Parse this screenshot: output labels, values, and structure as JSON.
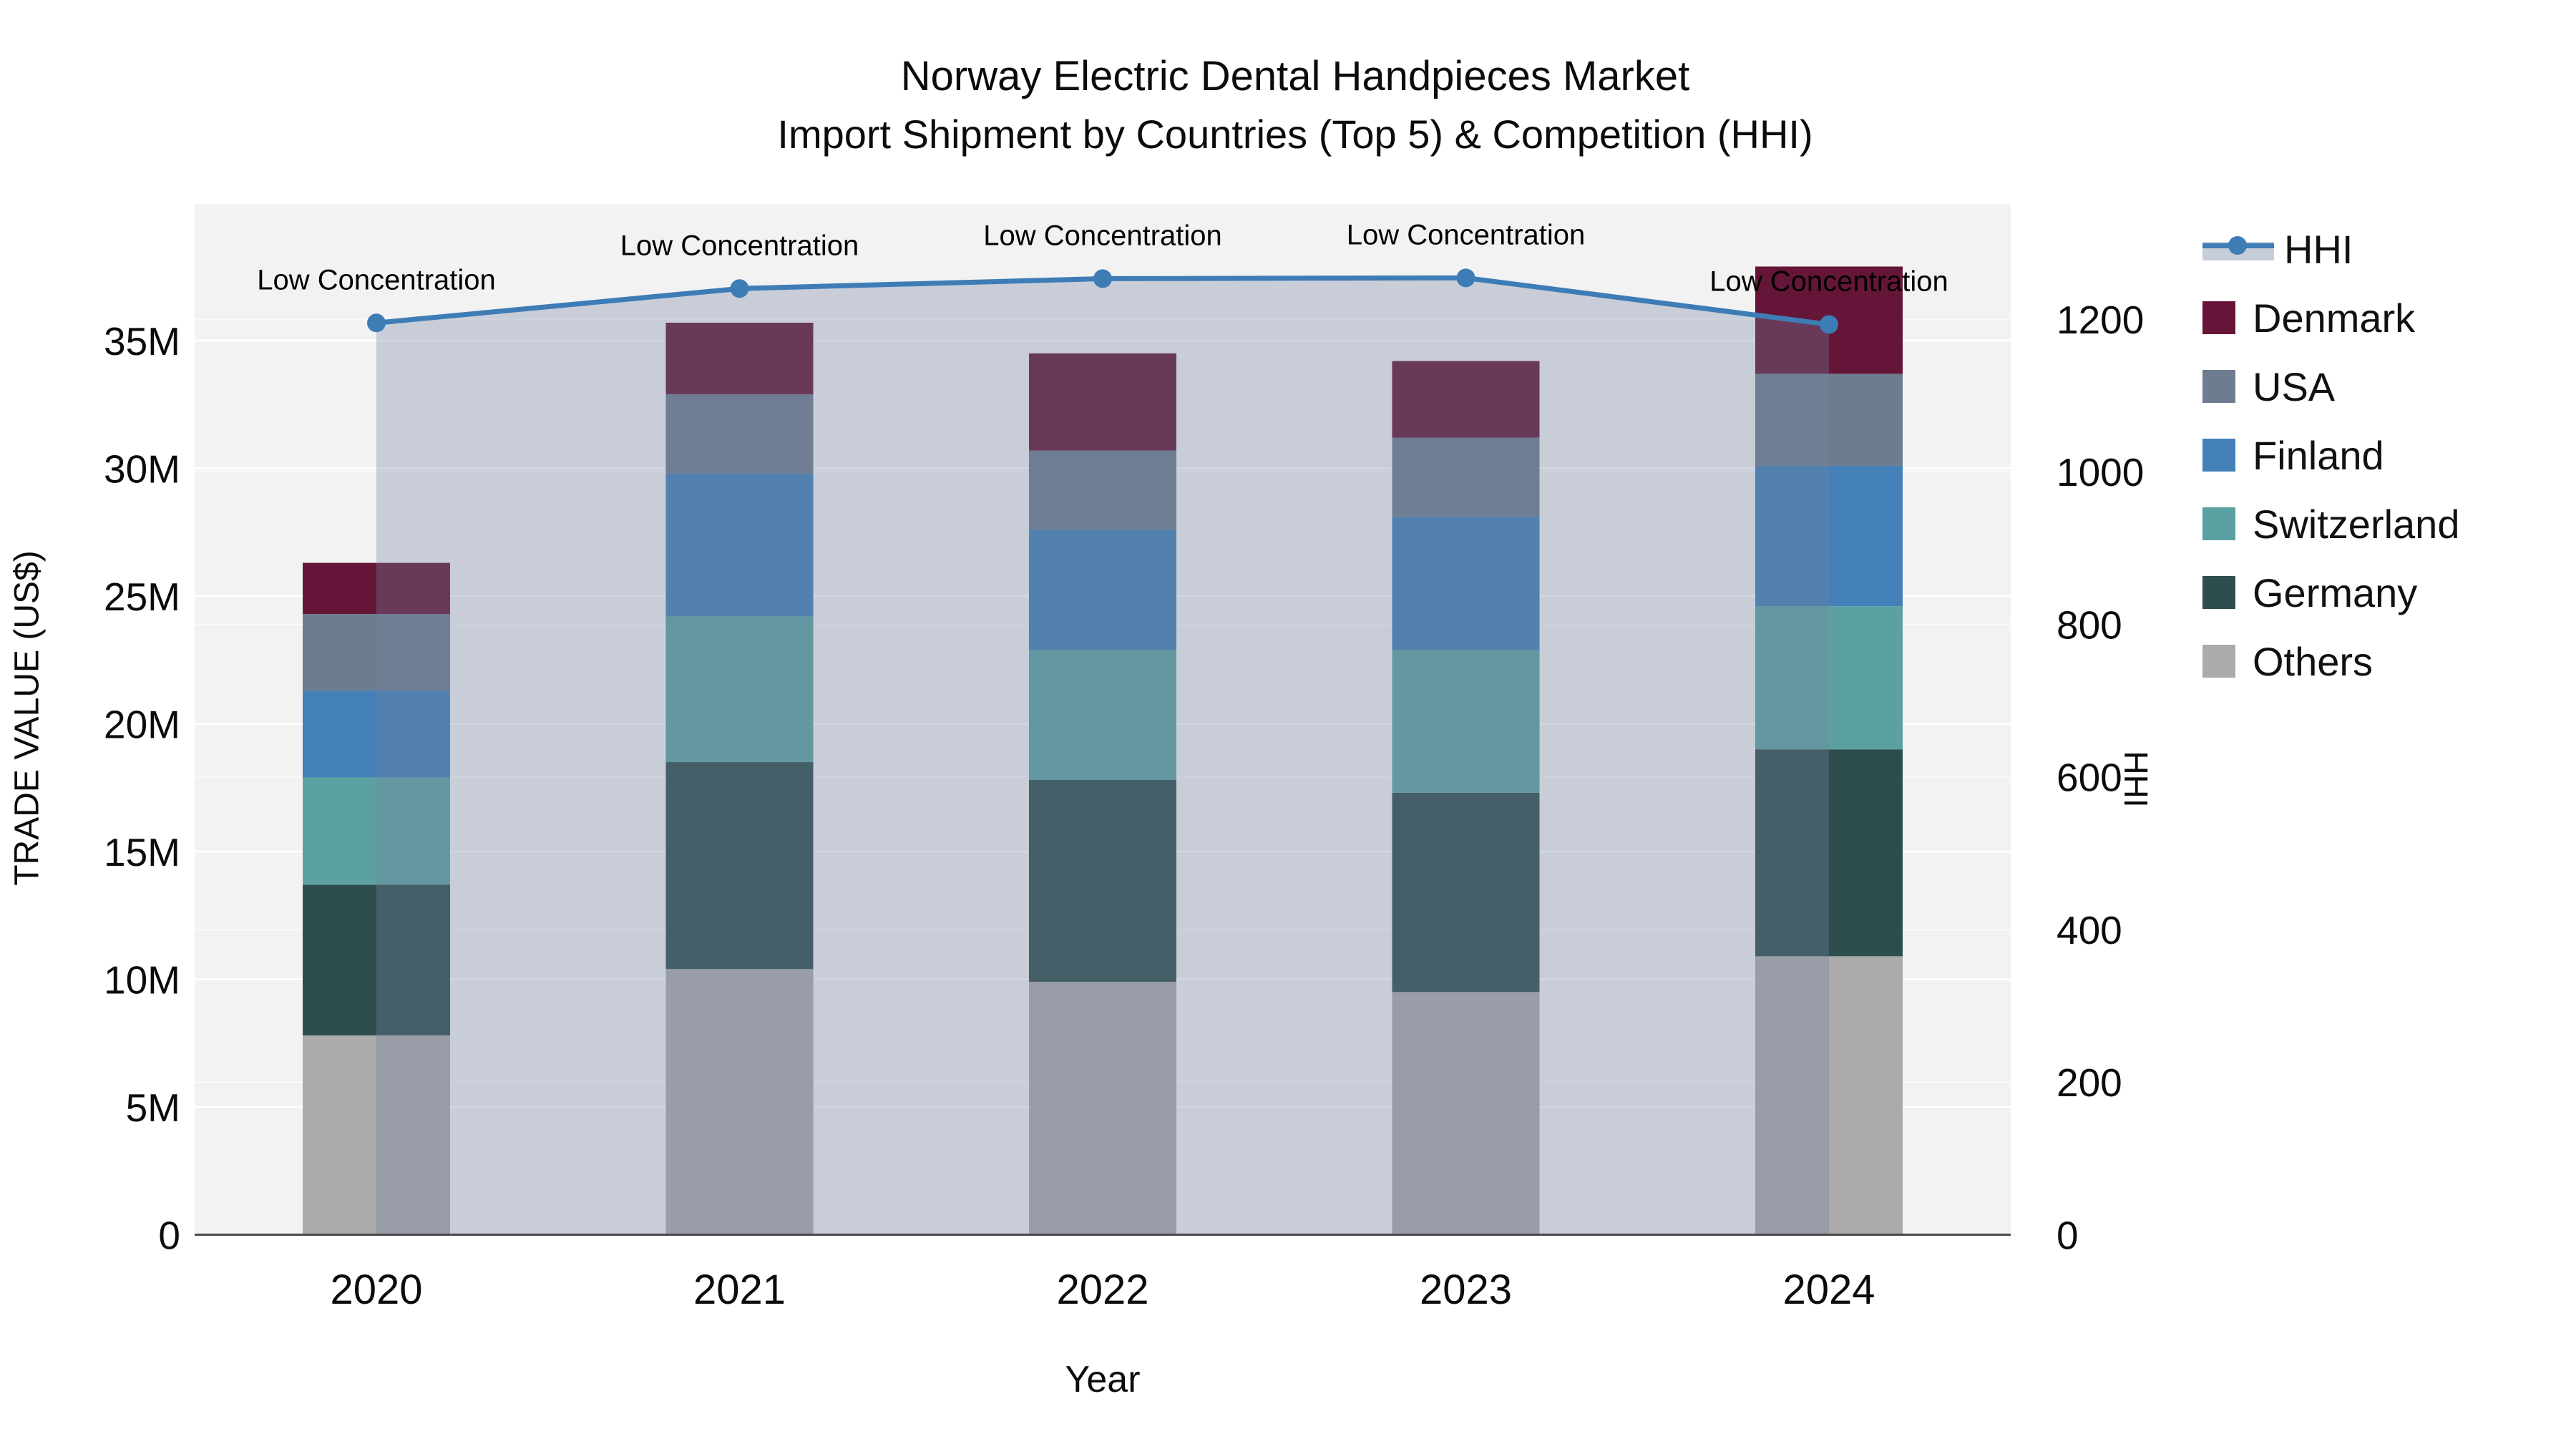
{
  "title": {
    "line1": "Norway Electric Dental Handpieces Market",
    "line2": "Import Shipment by Countries (Top 5) & Competition (HHI)"
  },
  "colors": {
    "plot_background": "#F2F2F3",
    "gridline": "#FFFFFF",
    "axis_line": "#4A4A4A",
    "hhi_line": "#3E7CB6",
    "hhi_fill": "rgba(114,130,161,0.33)",
    "Denmark": "#651638",
    "USA": "#6D7C8E",
    "Finland": "#4380B7",
    "Switzerland": "#5CA1A2",
    "Germany": "#2D4E4C",
    "Others": "#ABABAB"
  },
  "chart_data": {
    "type": "bar+line",
    "title": "Norway Electric Dental Handpieces Market Import Shipment by Countries (Top 5) & Competition (HHI)",
    "categories": [
      "2020",
      "2021",
      "2022",
      "2023",
      "2024"
    ],
    "bar_value_unit": "million US$",
    "stack_order_bottom_to_top": [
      "Others",
      "Germany",
      "Switzerland",
      "Finland",
      "USA",
      "Denmark"
    ],
    "series": [
      {
        "name": "Others",
        "values": [
          7.8,
          10.4,
          9.9,
          9.5,
          10.9
        ]
      },
      {
        "name": "Germany",
        "values": [
          5.9,
          8.1,
          7.9,
          7.8,
          8.1
        ]
      },
      {
        "name": "Switzerland",
        "values": [
          4.2,
          5.7,
          5.1,
          5.6,
          5.6
        ]
      },
      {
        "name": "Finland",
        "values": [
          3.4,
          5.6,
          4.7,
          5.2,
          5.5
        ]
      },
      {
        "name": "USA",
        "values": [
          3.0,
          3.1,
          3.1,
          3.1,
          3.6
        ]
      },
      {
        "name": "Denmark",
        "values": [
          2.0,
          2.8,
          3.8,
          3.0,
          4.2
        ]
      }
    ],
    "bar_totals": [
      26.3,
      35.7,
      34.5,
      34.2,
      37.9
    ],
    "line_series": {
      "name": "HHI",
      "values": [
        1195,
        1240,
        1253,
        1254,
        1193
      ]
    },
    "annotations": [
      {
        "year": "2020",
        "text": "Low Concentration"
      },
      {
        "year": "2021",
        "text": "Low Concentration"
      },
      {
        "year": "2022",
        "text": "Low Concentration"
      },
      {
        "year": "2023",
        "text": "Low Concentration"
      },
      {
        "year": "2024",
        "text": "Low Concentration"
      }
    ],
    "y_left": {
      "label": "TRADE VALUE (US$)",
      "tick_labels": [
        "0",
        "5M",
        "10M",
        "15M",
        "20M",
        "25M",
        "30M",
        "35M"
      ],
      "tick_values": [
        0,
        5,
        10,
        15,
        20,
        25,
        30,
        35
      ],
      "range": [
        0,
        38.9
      ]
    },
    "y_right": {
      "label": "HHI",
      "tick_labels": [
        "0",
        "200",
        "400",
        "600",
        "800",
        "1000",
        "1200"
      ],
      "tick_values": [
        0,
        200,
        400,
        600,
        800,
        1000,
        1200
      ],
      "range": [
        0,
        1389
      ]
    },
    "x_label": "Year",
    "grid": true,
    "legend_position": "right"
  },
  "legend": {
    "items": [
      {
        "label": "HHI",
        "type": "line"
      },
      {
        "label": "Denmark",
        "type": "swatch"
      },
      {
        "label": "USA",
        "type": "swatch"
      },
      {
        "label": "Finland",
        "type": "swatch"
      },
      {
        "label": "Switzerland",
        "type": "swatch"
      },
      {
        "label": "Germany",
        "type": "swatch"
      },
      {
        "label": "Others",
        "type": "swatch"
      }
    ]
  }
}
